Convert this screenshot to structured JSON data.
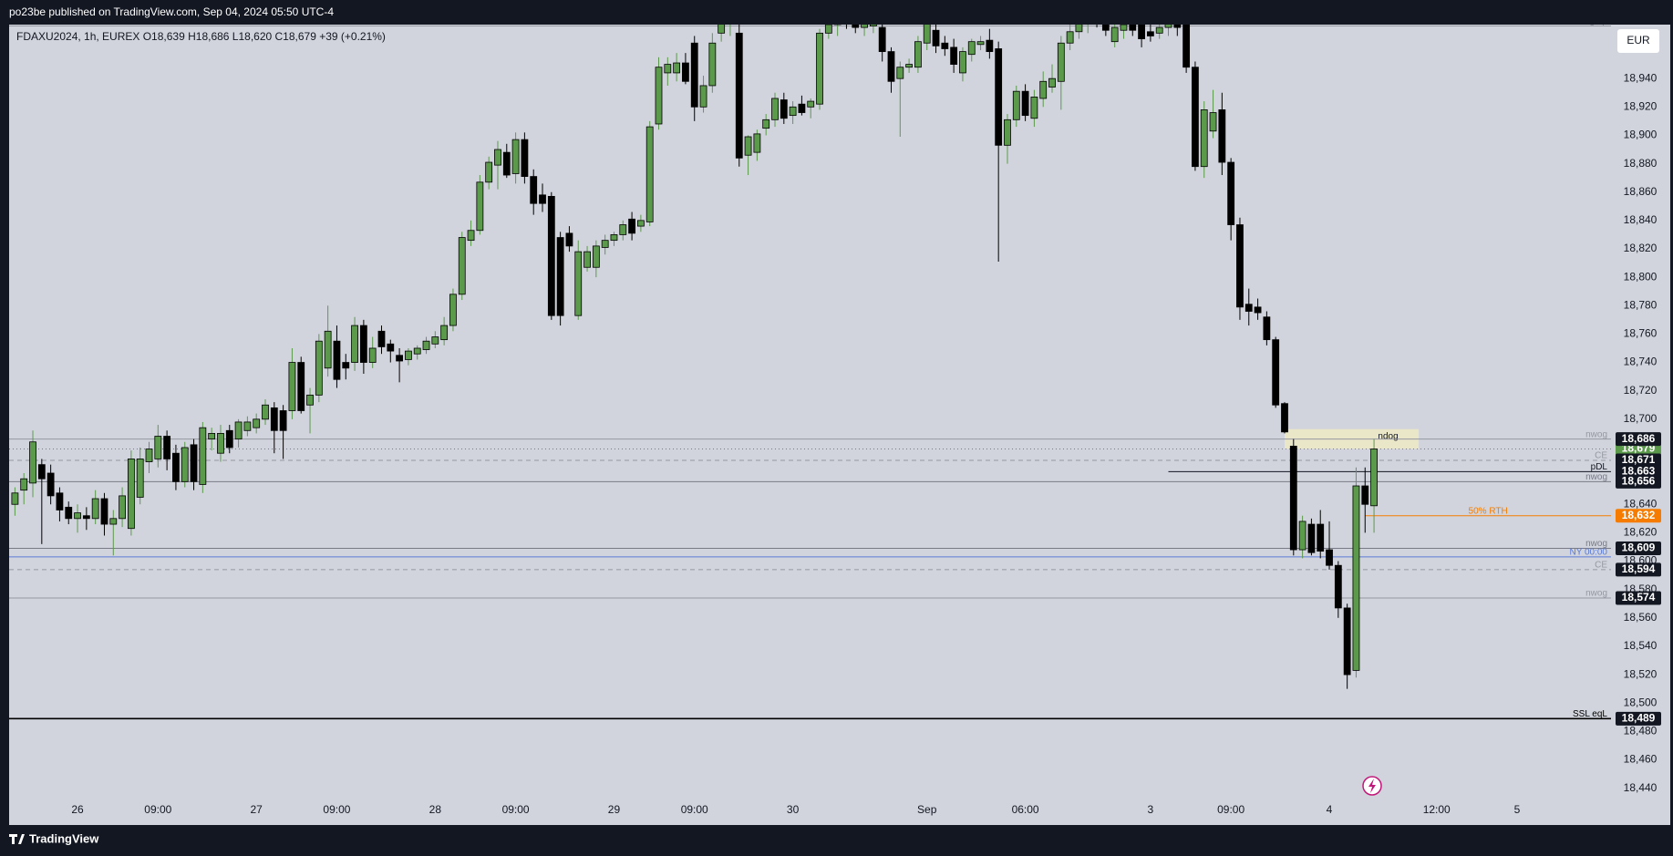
{
  "header": {
    "published": "po23be published on TradingView.com, Sep 04, 2024 05:50 UTC-4",
    "legend": "FDAXU2024, 1h, EUREX  O18,639  H18,686  L18,620  C18,679  +39 (+0.21%)",
    "currency": "EUR"
  },
  "footer": {
    "brand": "TradingView"
  },
  "chart_data": {
    "type": "candlestick",
    "up_color": "#5b9a4b",
    "down_color": "#000000",
    "ylim": [
      18416,
      18978
    ],
    "yticks": [
      {
        "value": 18440,
        "label": "18,440"
      },
      {
        "value": 18460,
        "label": "18,460"
      },
      {
        "value": 18480,
        "label": "18,480"
      },
      {
        "value": 18500,
        "label": "18,500"
      },
      {
        "value": 18520,
        "label": "18,520"
      },
      {
        "value": 18540,
        "label": "18,540"
      },
      {
        "value": 18560,
        "label": "18,560"
      },
      {
        "value": 18580,
        "label": "18,580"
      },
      {
        "value": 18600,
        "label": "18,600"
      },
      {
        "value": 18620,
        "label": "18,620"
      },
      {
        "value": 18640,
        "label": "18,640"
      },
      {
        "value": 18660,
        "label": "18,660"
      },
      {
        "value": 18680,
        "label": "18,680"
      },
      {
        "value": 18700,
        "label": "18,700"
      },
      {
        "value": 18720,
        "label": "18,720"
      },
      {
        "value": 18740,
        "label": "18,740"
      },
      {
        "value": 18760,
        "label": "18,760"
      },
      {
        "value": 18780,
        "label": "18,780"
      },
      {
        "value": 18800,
        "label": "18,800"
      },
      {
        "value": 18820,
        "label": "18,820"
      },
      {
        "value": 18840,
        "label": "18,840"
      },
      {
        "value": 18860,
        "label": "18,860"
      },
      {
        "value": 18880,
        "label": "18,880"
      },
      {
        "value": 18900,
        "label": "18,900"
      },
      {
        "value": 18920,
        "label": "18,920"
      },
      {
        "value": 18940,
        "label": "18,940"
      }
    ],
    "grid": false,
    "categories": [
      null,
      null,
      null,
      null,
      null,
      null,
      null,
      "26",
      null,
      null,
      null,
      null,
      null,
      null,
      null,
      null,
      "09:00",
      null,
      null,
      null,
      null,
      null,
      null,
      null,
      null,
      null,
      null,
      "27",
      null,
      null,
      null,
      null,
      null,
      null,
      null,
      null,
      "09:00",
      null,
      null,
      null,
      null,
      null,
      null,
      null,
      null,
      null,
      null,
      "28",
      null,
      null,
      null,
      null,
      null,
      null,
      null,
      null,
      "09:00",
      null,
      null,
      null,
      null,
      null,
      null,
      null,
      null,
      null,
      null,
      "29",
      null,
      null,
      null,
      null,
      null,
      null,
      null,
      null,
      "09:00",
      null,
      null,
      null,
      null,
      null,
      null,
      null,
      null,
      null,
      null,
      "30",
      null,
      null,
      null,
      null,
      null,
      null,
      null,
      null,
      null,
      null,
      null,
      null,
      null,
      null,
      "Sep",
      null,
      null,
      null,
      null,
      null,
      null,
      null,
      null,
      null,
      null,
      "06:00",
      null,
      null,
      null,
      null,
      null,
      null,
      null,
      null,
      null,
      null,
      null,
      null,
      null,
      "3",
      null,
      null,
      null,
      null,
      null,
      null,
      null,
      null,
      "09:00",
      null,
      null,
      null,
      null,
      null,
      null,
      null,
      null,
      null,
      null,
      "4",
      null,
      null,
      null,
      null,
      null,
      null,
      null,
      null,
      null,
      null,
      null,
      "12:00",
      null,
      null,
      null,
      null,
      null,
      null,
      null,
      null,
      "5"
    ],
    "open": [
      18640,
      18650,
      18655,
      18668,
      18662,
      18648,
      18638,
      18630,
      18632,
      18630,
      18644,
      18626,
      18630,
      18623,
      18645,
      18670,
      18672,
      18688,
      18676,
      18656,
      18682,
      18654,
      18686,
      18676,
      18692,
      18686,
      18692,
      18694,
      18700,
      18708,
      18706,
      18706,
      18740,
      18710,
      18717,
      18736,
      18755,
      18740,
      18740,
      18766,
      18740,
      18762,
      18753,
      18745,
      18742,
      18746,
      18749,
      18753,
      18756,
      18766,
      18788,
      18826,
      18833,
      18867,
      18879,
      18888,
      18873,
      18897,
      18871,
      18858,
      18857,
      18828,
      18831,
      18773,
      18807,
      18807,
      18821,
      18826,
      18830,
      18841,
      18836,
      18839,
      18908,
      18944,
      18944,
      18951,
      18965,
      18920,
      18935,
      18972,
      18980,
      18972,
      18886,
      18888,
      18905,
      18911,
      18925,
      18914,
      18922,
      18920,
      18922,
      18972,
      18978,
      18984,
      18980,
      18976,
      18977,
      18976,
      18959,
      18940,
      18948,
      18948,
      18965,
      18974,
      18965,
      18962,
      18944,
      18957,
      18964,
      18967,
      18961,
      18893,
      18911,
      18931,
      18912,
      18926,
      18934,
      18938,
      18965,
      18973,
      18979,
      18984,
      18980,
      18966,
      18974,
      18978,
      18978,
      18973,
      18972,
      18976,
      18980,
      18978,
      18948,
      18878,
      18903,
      18918,
      18881,
      18837,
      18781,
      18779,
      18772,
      18756,
      18711,
      18681,
      18608,
      18626,
      18626,
      18608,
      18597,
      18567,
      18523,
      18653,
      18639,
      null,
      null,
      null,
      null,
      null,
      null,
      null,
      null,
      null,
      null,
      null,
      null,
      null,
      null,
      null,
      null
    ],
    "high": [
      18652,
      18662,
      18692,
      18672,
      18668,
      18652,
      18642,
      18640,
      18638,
      18650,
      18648,
      18636,
      18652,
      18678,
      18680,
      18684,
      18696,
      18692,
      18682,
      18684,
      18686,
      18698,
      18694,
      18696,
      18696,
      18700,
      18702,
      18704,
      18714,
      18712,
      18710,
      18750,
      18744,
      18722,
      18760,
      18780,
      18766,
      18746,
      18772,
      18770,
      18758,
      18766,
      18756,
      18750,
      18750,
      18752,
      18758,
      18762,
      18772,
      18792,
      18832,
      18840,
      18872,
      18885,
      18896,
      18894,
      18902,
      18902,
      18876,
      18866,
      18860,
      18832,
      18836,
      18826,
      18822,
      18826,
      18830,
      18832,
      18840,
      18846,
      18844,
      18910,
      18955,
      18955,
      18958,
      18958,
      18970,
      18942,
      18972,
      18985,
      18995,
      18980,
      18900,
      18904,
      18915,
      18930,
      18930,
      18924,
      18928,
      18926,
      18975,
      18985,
      18990,
      18992,
      18990,
      18988,
      18985,
      18980,
      18962,
      18952,
      18954,
      18970,
      18985,
      18978,
      18970,
      18968,
      18962,
      18968,
      18970,
      18975,
      18966,
      18915,
      18935,
      18936,
      18932,
      18945,
      18950,
      18970,
      18978,
      18985,
      18990,
      18994,
      18990,
      18980,
      18985,
      18984,
      18982,
      18978,
      18980,
      18985,
      18986,
      18985,
      18952,
      18924,
      18932,
      18930,
      18884,
      18842,
      18792,
      18785,
      18776,
      18758,
      18712,
      18686,
      18632,
      18630,
      18636,
      18628,
      18600,
      18570,
      18666,
      18666,
      18686,
      null,
      null,
      null,
      null,
      null,
      null,
      null,
      null,
      null,
      null,
      null,
      null,
      null,
      null,
      null,
      null
    ],
    "low": [
      18632,
      18640,
      18645,
      18612,
      18640,
      18628,
      18626,
      18620,
      18622,
      18626,
      18618,
      18604,
      18624,
      18618,
      18640,
      18662,
      18666,
      18664,
      18650,
      18652,
      18650,
      18648,
      18678,
      18670,
      18676,
      18680,
      18688,
      18690,
      18696,
      18676,
      18672,
      18700,
      18704,
      18690,
      18712,
      18730,
      18722,
      18728,
      18734,
      18732,
      18736,
      18746,
      18740,
      18726,
      18738,
      18742,
      18746,
      18750,
      18752,
      18762,
      18784,
      18822,
      18830,
      18862,
      18862,
      18870,
      18866,
      18866,
      18844,
      18846,
      18770,
      18766,
      18818,
      18770,
      18804,
      18800,
      18816,
      18822,
      18826,
      18826,
      18832,
      18836,
      18904,
      18935,
      18938,
      18936,
      18910,
      18916,
      18930,
      18966,
      18970,
      18878,
      18872,
      18882,
      18900,
      18906,
      18908,
      18908,
      18914,
      18912,
      18918,
      18968,
      18970,
      18975,
      18972,
      18970,
      18972,
      18952,
      18930,
      18899,
      18944,
      18944,
      18960,
      18958,
      18956,
      18944,
      18938,
      18952,
      18960,
      18954,
      18811,
      18880,
      18906,
      18910,
      18906,
      18920,
      18930,
      18918,
      18960,
      18968,
      18972,
      18976,
      18970,
      18962,
      18968,
      18970,
      18962,
      18966,
      18968,
      18970,
      18970,
      18944,
      18875,
      18870,
      18898,
      18872,
      18826,
      18770,
      18766,
      18770,
      18752,
      18708,
      18690,
      18604,
      18602,
      18604,
      18602,
      18594,
      18560,
      18510,
      18518,
      18620,
      18620,
      null,
      null,
      null,
      null,
      null,
      null,
      null,
      null,
      null,
      null,
      null,
      null,
      null,
      null,
      null,
      null
    ],
    "close": [
      18648,
      18658,
      18684,
      18658,
      18646,
      18636,
      18630,
      18634,
      18630,
      18644,
      18626,
      18630,
      18646,
      18672,
      18672,
      18679,
      18688,
      18672,
      18656,
      18680,
      18656,
      18694,
      18690,
      18690,
      18680,
      18698,
      18698,
      18700,
      18710,
      18692,
      18692,
      18740,
      18706,
      18717,
      18755,
      18762,
      18728,
      18736,
      18766,
      18740,
      18750,
      18751,
      18748,
      18741,
      18748,
      18750,
      18755,
      18758,
      18766,
      18788,
      18828,
      18833,
      18867,
      18881,
      18890,
      18872,
      18897,
      18871,
      18852,
      18852,
      18773,
      18773,
      18822,
      18818,
      18818,
      18822,
      18826,
      18830,
      18837,
      18831,
      18840,
      18906,
      18948,
      18950,
      18951,
      18938,
      18920,
      18935,
      18965,
      18980,
      18985,
      18884,
      18899,
      18901,
      18911,
      18926,
      18912,
      18920,
      18916,
      18924,
      18972,
      18978,
      18984,
      18980,
      18976,
      18982,
      18980,
      18959,
      18938,
      18948,
      18950,
      18966,
      18980,
      18963,
      18961,
      18950,
      18959,
      18966,
      18966,
      18959,
      18893,
      18911,
      18931,
      18914,
      18927,
      18938,
      18940,
      18965,
      18973,
      18979,
      18984,
      18980,
      18974,
      18976,
      18978,
      18974,
      18968,
      18970,
      18976,
      18980,
      18976,
      18948,
      18878,
      18918,
      18916,
      18881,
      18837,
      18779,
      18776,
      18775,
      18756,
      18710,
      18691,
      18608,
      18628,
      18606,
      18607,
      18597,
      18567,
      18520,
      18653,
      18640,
      18679,
      null,
      null,
      null,
      null,
      null,
      null,
      null,
      null,
      null,
      null,
      null,
      null,
      null,
      null,
      null,
      null
    ],
    "last_price": {
      "value": 18679,
      "tag": "18,679",
      "color": "#5b9a4b",
      "line_color": "#787b86"
    },
    "zone": {
      "name": "ndog",
      "low": 18679,
      "high": 18693,
      "start": 142,
      "end": 157,
      "color": "#efe9c4"
    },
    "levels": [
      {
        "name": "nwog/op",
        "value": 18977,
        "color": "#9598a1",
        "style": "solid"
      },
      {
        "name": "nwog",
        "value": 18686,
        "tag": "18,686",
        "tag_color": "#131722",
        "color": "#9598a1",
        "style": "solid"
      },
      {
        "name": "CE",
        "value": 18671,
        "tag": "18,671",
        "tag_color": "#131722",
        "color": "#9598a1",
        "style": "dashed"
      },
      {
        "name": "pDL",
        "value": 18663,
        "tag": "18,663",
        "tag_color": "#131722",
        "color": "#131722",
        "style": "solid",
        "start": 129
      },
      {
        "name": "nwog",
        "value": 18656,
        "tag": "18,656",
        "tag_color": "#131722",
        "color": "#787b86",
        "style": "solid"
      },
      {
        "name": "50% RTH",
        "value": 18632,
        "tag": "18,632",
        "tag_color": "#f57c00",
        "color": "#f57c00",
        "style": "solid",
        "start": 151,
        "label_position": "center"
      },
      {
        "name": "nwog",
        "value": 18609,
        "tag": "18,609",
        "tag_color": "#131722",
        "color": "#787b86",
        "style": "solid"
      },
      {
        "name": "NY 00:00",
        "value": 18603,
        "color": "#5b7bd5",
        "style": "solid"
      },
      {
        "name": "CE",
        "value": 18594,
        "tag": "18,594",
        "tag_color": "#131722",
        "color": "#9598a1",
        "style": "dashed"
      },
      {
        "name": "nwog",
        "value": 18574,
        "tag": "18,574",
        "tag_color": "#131722",
        "color": "#9598a1",
        "style": "solid"
      },
      {
        "name": "SSL eqL",
        "value": 18489,
        "tag": "18,489",
        "tag_color": "#131722",
        "color": "#000000",
        "style": "thick"
      }
    ]
  }
}
